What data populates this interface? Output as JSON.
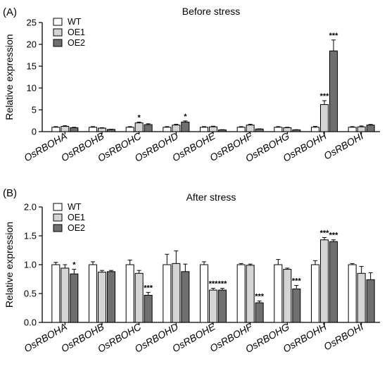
{
  "chart_data": [
    {
      "type": "bar",
      "panel_label": "(A)",
      "title": "Before stress",
      "xlabel": "",
      "ylabel": "Relative expression",
      "ylim": [
        0,
        25
      ],
      "yticks": [
        0,
        5,
        10,
        15,
        20,
        25
      ],
      "grid": false,
      "legend_position": "top-left",
      "categories": [
        "OsRBOHA",
        "OsRBOHB",
        "OsRBOHC",
        "OsRBOHD",
        "OsRBOHE",
        "OsRBOHF",
        "OsRBOHG",
        "OsRBOHH",
        "OsRBOHI"
      ],
      "series": [
        {
          "name": "WT",
          "color": "#ffffff",
          "values": [
            1.0,
            1.0,
            1.0,
            1.0,
            1.0,
            1.0,
            1.0,
            1.0,
            1.0
          ],
          "errors": [
            0.15,
            0.15,
            0.15,
            0.15,
            0.15,
            0.15,
            0.15,
            0.2,
            0.15
          ],
          "significance": [
            "",
            "",
            "",
            "",
            "",
            "",
            "",
            "",
            ""
          ]
        },
        {
          "name": "OE1",
          "color": "#d4d4d4",
          "values": [
            1.2,
            0.8,
            2.0,
            1.5,
            1.1,
            1.5,
            0.9,
            6.2,
            1.1
          ],
          "errors": [
            0.15,
            0.1,
            0.2,
            0.2,
            0.15,
            0.2,
            0.1,
            0.9,
            0.2
          ],
          "significance": [
            "",
            "",
            "*",
            "",
            "",
            "",
            "",
            "***",
            ""
          ]
        },
        {
          "name": "OE2",
          "color": "#6f6f6f",
          "values": [
            0.9,
            0.5,
            1.6,
            2.2,
            0.4,
            0.6,
            0.4,
            18.5,
            1.5
          ],
          "errors": [
            0.1,
            0.05,
            0.2,
            0.25,
            0.05,
            0.05,
            0.05,
            2.5,
            0.15
          ],
          "significance": [
            "",
            "",
            "",
            "*",
            "",
            "",
            "",
            "***",
            ""
          ]
        }
      ]
    },
    {
      "type": "bar",
      "panel_label": "(B)",
      "title": "After stress",
      "xlabel": "",
      "ylabel": "Relative expression",
      "ylim": [
        0,
        2.0
      ],
      "yticks": [
        "0.0",
        "0.5",
        "1.0",
        "1.5",
        "2.0"
      ],
      "grid": false,
      "legend_position": "top-left",
      "categories": [
        "OsRBOHA",
        "OsRBOHB",
        "OsRBOHC",
        "OsRBOHD",
        "OsRBOHE",
        "OsRBOHF",
        "OsRBOHG",
        "OsRBOHH",
        "OsRBOHI"
      ],
      "series": [
        {
          "name": "WT",
          "color": "#ffffff",
          "values": [
            1.0,
            1.0,
            1.0,
            1.0,
            1.0,
            1.0,
            1.0,
            1.0,
            1.0
          ],
          "errors": [
            0.04,
            0.05,
            0.08,
            0.18,
            0.05,
            0.02,
            0.09,
            0.07,
            0.02
          ],
          "significance": [
            "",
            "",
            "",
            "",
            "",
            "",
            "",
            "",
            ""
          ]
        },
        {
          "name": "OE1",
          "color": "#d4d4d4",
          "values": [
            0.94,
            0.87,
            0.85,
            1.02,
            0.56,
            0.99,
            0.92,
            1.43,
            0.85
          ],
          "errors": [
            0.06,
            0.03,
            0.05,
            0.22,
            0.03,
            0.02,
            0.02,
            0.04,
            0.12
          ],
          "significance": [
            "",
            "",
            "",
            "",
            "***",
            "",
            "",
            "***",
            ""
          ]
        },
        {
          "name": "OE2",
          "color": "#6f6f6f",
          "values": [
            0.84,
            0.88,
            0.47,
            0.88,
            0.56,
            0.34,
            0.58,
            1.4,
            0.74
          ],
          "errors": [
            0.08,
            0.02,
            0.05,
            0.13,
            0.03,
            0.03,
            0.06,
            0.03,
            0.12
          ],
          "significance": [
            "*",
            "",
            "***",
            "",
            "***",
            "***",
            "***",
            "***",
            ""
          ]
        }
      ]
    }
  ]
}
